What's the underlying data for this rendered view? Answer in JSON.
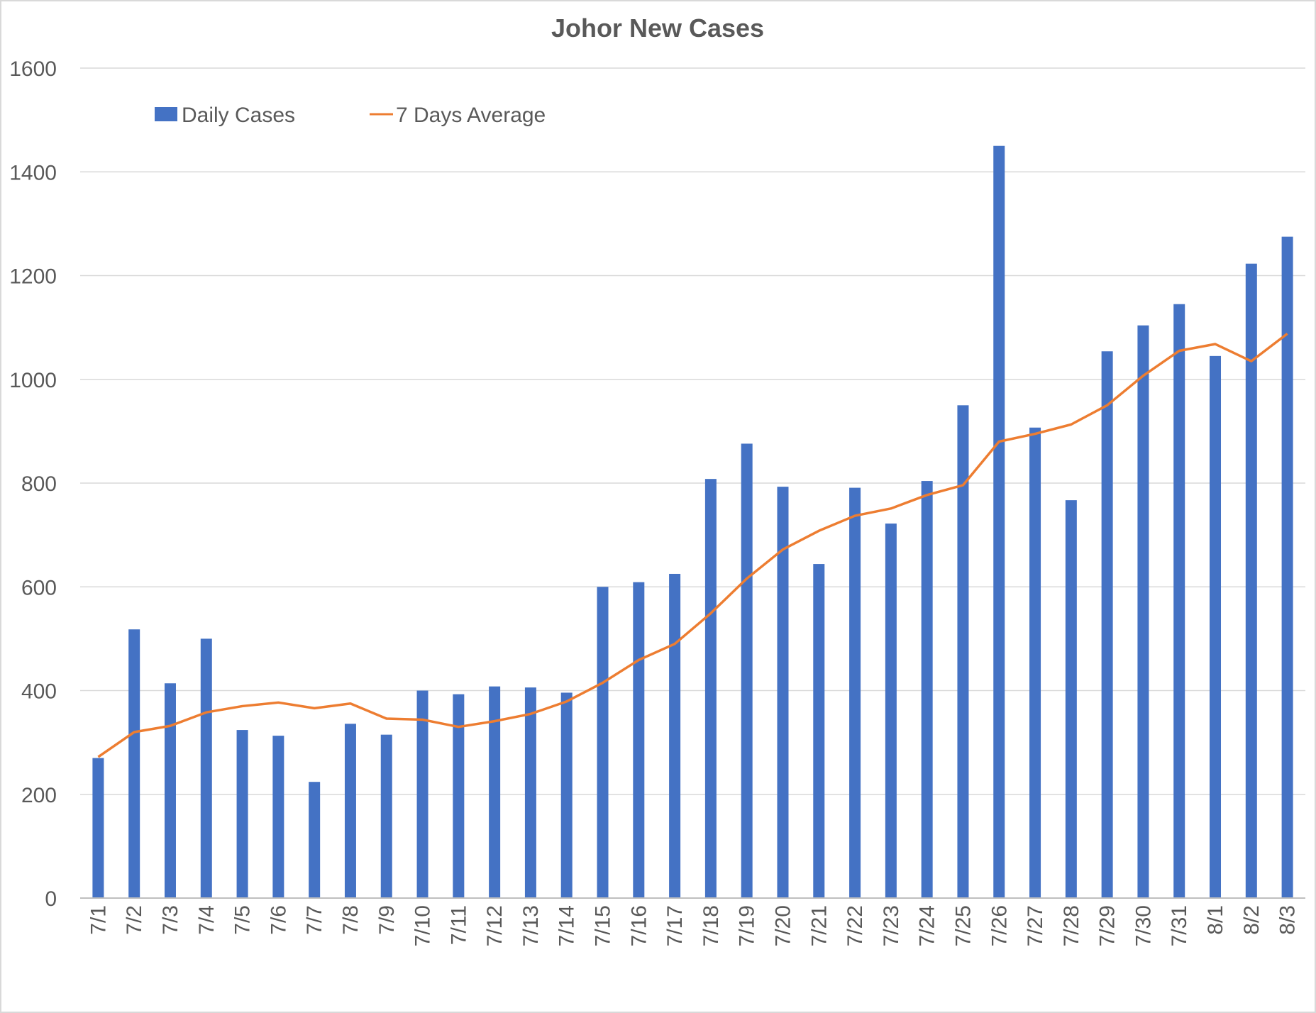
{
  "chart_data": {
    "type": "bar",
    "title": "Johor New Cases",
    "xlabel": "",
    "ylabel": "",
    "ylim": [
      0,
      1600
    ],
    "yticks": [
      0,
      200,
      400,
      600,
      800,
      1000,
      1200,
      1400,
      1600
    ],
    "grid": true,
    "legend_position": "top-left",
    "categories": [
      "7/1",
      "7/2",
      "7/3",
      "7/4",
      "7/5",
      "7/6",
      "7/7",
      "7/8",
      "7/9",
      "7/10",
      "7/11",
      "7/12",
      "7/13",
      "7/14",
      "7/15",
      "7/16",
      "7/17",
      "7/18",
      "7/19",
      "7/20",
      "7/21",
      "7/22",
      "7/23",
      "7/24",
      "7/25",
      "7/26",
      "7/27",
      "7/28",
      "7/29",
      "7/30",
      "7/31",
      "8/1",
      "8/2",
      "8/3"
    ],
    "series": [
      {
        "name": "Daily Cases",
        "type": "bar",
        "color": "#4472c4",
        "values": [
          270,
          518,
          414,
          500,
          324,
          313,
          224,
          336,
          315,
          400,
          393,
          408,
          406,
          396,
          600,
          609,
          625,
          808,
          876,
          793,
          644,
          791,
          722,
          804,
          950,
          1450,
          907,
          767,
          1054,
          1104,
          1145,
          1045,
          1223,
          1275
        ]
      },
      {
        "name": "7 Days Average",
        "type": "line",
        "color": "#ed7d31",
        "values": [
          272,
          320,
          332,
          358,
          370,
          377,
          366,
          375,
          346,
          344,
          330,
          341,
          355,
          379,
          415,
          459,
          490,
          549,
          616,
          672,
          708,
          737,
          751,
          777,
          796,
          880,
          895,
          913,
          950,
          1007,
          1055,
          1068,
          1035,
          1088
        ]
      }
    ]
  }
}
